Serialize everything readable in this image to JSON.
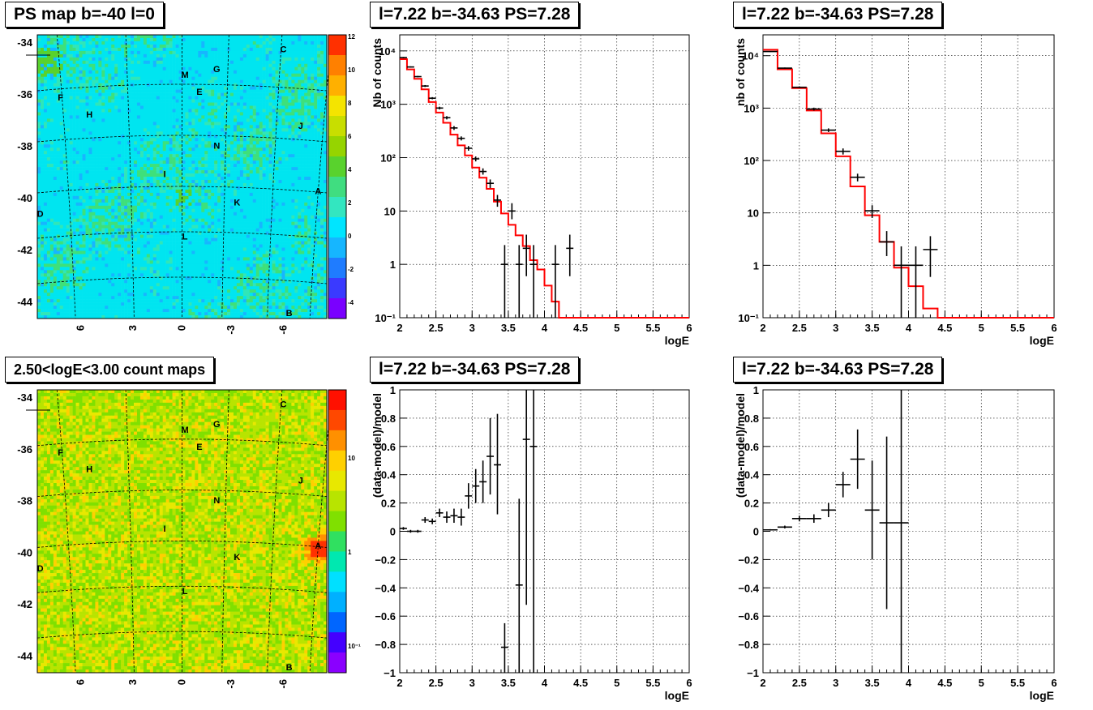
{
  "titles": {
    "map1": "PS map b=-40 l=0",
    "map2": "2.50<logE<3.00 count maps",
    "spec1": "l=7.22 b=-34.63 PS=7.28",
    "spec2": "l=7.22 b=-34.63 PS=7.28",
    "res1": "l=7.22 b=-34.63 PS=7.28",
    "res2": "l=7.22 b=-34.63 PS=7.28"
  },
  "maps": {
    "x_ticks": [
      "6",
      "3",
      "0",
      "-3",
      "-6"
    ],
    "y_ticks": [
      "-34",
      "-36",
      "-38",
      "-40",
      "-42",
      "-44"
    ],
    "markers": [
      "C",
      "M",
      "G",
      "F",
      "E",
      "H",
      "J",
      "N",
      "I",
      "A",
      "D",
      "K",
      "L",
      "B"
    ],
    "ps_scale": [
      "12",
      "10",
      "8",
      "6",
      "4",
      "2",
      "0",
      "-2",
      "-4"
    ],
    "count_scale": [
      "10",
      "1",
      "10⁻¹"
    ]
  },
  "chart_data": [
    {
      "type": "line",
      "panel": "spec1",
      "title": "l=7.22 b=-34.63 PS=7.28",
      "xlabel": "logE",
      "ylabel": "Nb of counts",
      "ylog": true,
      "xlim": [
        2,
        6
      ],
      "ylim": [
        0.1,
        20000
      ],
      "x_ticks": [
        "2",
        "2.5",
        "3",
        "3.5",
        "4",
        "4.5",
        "5",
        "5.5",
        "6"
      ],
      "y_ticks": [
        "10⁻¹",
        "1",
        "10",
        "10²",
        "10³",
        "10⁴"
      ],
      "model_step": {
        "edges": [
          2.0,
          2.1,
          2.2,
          2.3,
          2.4,
          2.5,
          2.6,
          2.7,
          2.8,
          2.9,
          3.0,
          3.1,
          3.2,
          3.3,
          3.4,
          3.5,
          3.6,
          3.7,
          3.8,
          3.9,
          4.0,
          4.1,
          4.2,
          6.0
        ],
        "values": [
          7000,
          4500,
          3000,
          1900,
          1100,
          700,
          450,
          270,
          170,
          110,
          65,
          42,
          26,
          15,
          9,
          5.5,
          3.5,
          2.2,
          1.2,
          0.8,
          0.4,
          0.2,
          0.1
        ]
      },
      "data_points": [
        {
          "x": 2.05,
          "y": 7500,
          "ylo": 7300,
          "yhi": 7700
        },
        {
          "x": 2.15,
          "y": 5000,
          "ylo": 4860,
          "yhi": 5140
        },
        {
          "x": 2.25,
          "y": 3300,
          "ylo": 3200,
          "yhi": 3400
        },
        {
          "x": 2.35,
          "y": 2200,
          "ylo": 2110,
          "yhi": 2290
        },
        {
          "x": 2.45,
          "y": 1300,
          "ylo": 1240,
          "yhi": 1360
        },
        {
          "x": 2.55,
          "y": 850,
          "ylo": 800,
          "yhi": 900
        },
        {
          "x": 2.65,
          "y": 560,
          "ylo": 520,
          "yhi": 600
        },
        {
          "x": 2.75,
          "y": 360,
          "ylo": 330,
          "yhi": 390
        },
        {
          "x": 2.85,
          "y": 230,
          "ylo": 210,
          "yhi": 250
        },
        {
          "x": 2.95,
          "y": 150,
          "ylo": 135,
          "yhi": 165
        },
        {
          "x": 3.05,
          "y": 95,
          "ylo": 85,
          "yhi": 105
        },
        {
          "x": 3.15,
          "y": 55,
          "ylo": 48,
          "yhi": 63
        },
        {
          "x": 3.25,
          "y": 33,
          "ylo": 27,
          "yhi": 39
        },
        {
          "x": 3.35,
          "y": 16,
          "ylo": 12,
          "yhi": 20
        },
        {
          "x": 3.55,
          "y": 10,
          "ylo": 7,
          "yhi": 14
        },
        {
          "x": 3.45,
          "y": 1,
          "ylo": 0.1,
          "yhi": 2.3
        },
        {
          "x": 3.65,
          "y": 1,
          "ylo": 0.1,
          "yhi": 2.3
        },
        {
          "x": 3.75,
          "y": 2,
          "ylo": 0.6,
          "yhi": 3.6
        },
        {
          "x": 3.85,
          "y": 1,
          "ylo": 0.1,
          "yhi": 2.3
        },
        {
          "x": 4.15,
          "y": 1,
          "ylo": 0.1,
          "yhi": 2.3
        },
        {
          "x": 4.35,
          "y": 2,
          "ylo": 0.6,
          "yhi": 3.6
        }
      ]
    },
    {
      "type": "line",
      "panel": "spec2",
      "title": "l=7.22 b=-34.63 PS=7.28",
      "xlabel": "logE",
      "ylabel": "nb of counts",
      "ylog": true,
      "xlim": [
        2,
        6
      ],
      "ylim": [
        0.1,
        25000
      ],
      "x_ticks": [
        "2",
        "2.5",
        "3",
        "3.5",
        "4",
        "4.5",
        "5",
        "5.5",
        "6"
      ],
      "y_ticks": [
        "10⁻¹",
        "1",
        "10",
        "10²",
        "10³",
        "10⁴"
      ],
      "model_step": {
        "edges": [
          2.0,
          2.2,
          2.4,
          2.6,
          2.8,
          3.0,
          3.2,
          3.4,
          3.6,
          3.8,
          4.0,
          4.2,
          4.4,
          6.0
        ],
        "values": [
          13000,
          5500,
          2400,
          900,
          330,
          120,
          32,
          9,
          2.8,
          0.9,
          0.4,
          0.15,
          0.1
        ]
      },
      "data_points": [
        {
          "x": 2.1,
          "y": 12000,
          "ylo": 11800,
          "yhi": 12200
        },
        {
          "x": 2.3,
          "y": 5800,
          "ylo": 5650,
          "yhi": 5950
        },
        {
          "x": 2.5,
          "y": 2500,
          "ylo": 2400,
          "yhi": 2600
        },
        {
          "x": 2.7,
          "y": 960,
          "ylo": 900,
          "yhi": 1020
        },
        {
          "x": 2.9,
          "y": 380,
          "ylo": 350,
          "yhi": 410
        },
        {
          "x": 3.1,
          "y": 150,
          "ylo": 130,
          "yhi": 170
        },
        {
          "x": 3.3,
          "y": 48,
          "ylo": 40,
          "yhi": 56
        },
        {
          "x": 3.5,
          "y": 11,
          "ylo": 8,
          "yhi": 14
        },
        {
          "x": 3.7,
          "y": 2.8,
          "ylo": 1.5,
          "yhi": 4.5
        },
        {
          "x": 3.9,
          "y": 1,
          "ylo": 0.1,
          "yhi": 2.3
        },
        {
          "x": 4.1,
          "y": 1,
          "ylo": 0.1,
          "yhi": 2.3
        },
        {
          "x": 4.3,
          "y": 2,
          "ylo": 0.6,
          "yhi": 3.6
        }
      ]
    },
    {
      "type": "scatter",
      "panel": "res1",
      "title": "l=7.22 b=-34.63 PS=7.28",
      "xlabel": "logE",
      "ylabel": "(data-model)/model",
      "xlim": [
        2,
        6
      ],
      "ylim": [
        -1,
        1
      ],
      "x_ticks": [
        "2",
        "2.5",
        "3",
        "3.5",
        "4",
        "4.5",
        "5",
        "5.5",
        "6"
      ],
      "y_ticks": [
        "−1",
        "−0.8",
        "−0.6",
        "−0.4",
        "−0.2",
        "0",
        "0.2",
        "0.4",
        "0.6",
        "0.8",
        "1"
      ],
      "data_points": [
        {
          "x": 2.05,
          "y": 0.02,
          "ylo": 0.01,
          "yhi": 0.03
        },
        {
          "x": 2.15,
          "y": 0.0,
          "ylo": -0.01,
          "yhi": 0.01
        },
        {
          "x": 2.25,
          "y": 0.0,
          "ylo": -0.01,
          "yhi": 0.01
        },
        {
          "x": 2.35,
          "y": 0.08,
          "ylo": 0.06,
          "yhi": 0.1
        },
        {
          "x": 2.45,
          "y": 0.07,
          "ylo": 0.05,
          "yhi": 0.09
        },
        {
          "x": 2.55,
          "y": 0.13,
          "ylo": 0.1,
          "yhi": 0.16
        },
        {
          "x": 2.65,
          "y": 0.1,
          "ylo": 0.06,
          "yhi": 0.14
        },
        {
          "x": 2.75,
          "y": 0.11,
          "ylo": 0.06,
          "yhi": 0.16
        },
        {
          "x": 2.85,
          "y": 0.1,
          "ylo": 0.04,
          "yhi": 0.16
        },
        {
          "x": 2.95,
          "y": 0.25,
          "ylo": 0.16,
          "yhi": 0.34
        },
        {
          "x": 3.05,
          "y": 0.32,
          "ylo": 0.2,
          "yhi": 0.44
        },
        {
          "x": 3.15,
          "y": 0.35,
          "ylo": 0.2,
          "yhi": 0.5
        },
        {
          "x": 3.25,
          "y": 0.53,
          "ylo": 0.26,
          "yhi": 0.8
        },
        {
          "x": 3.35,
          "y": 0.47,
          "ylo": 0.12,
          "yhi": 0.83
        },
        {
          "x": 3.45,
          "y": -0.82,
          "ylo": -1.0,
          "yhi": -0.65
        },
        {
          "x": 3.65,
          "y": -0.38,
          "ylo": -1.0,
          "yhi": 0.23
        },
        {
          "x": 3.75,
          "y": 0.65,
          "ylo": -0.52,
          "yhi": 1.0
        },
        {
          "x": 3.85,
          "y": 0.6,
          "ylo": -1.0,
          "yhi": 1.0
        }
      ]
    },
    {
      "type": "scatter",
      "panel": "res2",
      "title": "l=7.22 b=-34.63 PS=7.28",
      "xlabel": "logE",
      "ylabel": "(data-model)/model",
      "xlim": [
        2,
        6
      ],
      "ylim": [
        -1,
        1
      ],
      "x_ticks": [
        "2",
        "2.5",
        "3",
        "3.5",
        "4",
        "4.5",
        "5",
        "5.5",
        "6"
      ],
      "y_ticks": [
        "−1",
        "−0.8",
        "−0.6",
        "−0.4",
        "−0.2",
        "0",
        "0.2",
        "0.4",
        "0.6",
        "0.8",
        "1"
      ],
      "data_points": [
        {
          "x": 2.1,
          "y": 0.01,
          "ylo": 0.005,
          "yhi": 0.015
        },
        {
          "x": 2.3,
          "y": 0.03,
          "ylo": 0.02,
          "yhi": 0.04
        },
        {
          "x": 2.5,
          "y": 0.09,
          "ylo": 0.07,
          "yhi": 0.11
        },
        {
          "x": 2.7,
          "y": 0.09,
          "ylo": 0.06,
          "yhi": 0.12
        },
        {
          "x": 2.9,
          "y": 0.15,
          "ylo": 0.1,
          "yhi": 0.2
        },
        {
          "x": 3.1,
          "y": 0.33,
          "ylo": 0.24,
          "yhi": 0.42
        },
        {
          "x": 3.3,
          "y": 0.51,
          "ylo": 0.3,
          "yhi": 0.72
        },
        {
          "x": 3.5,
          "y": 0.15,
          "ylo": -0.2,
          "yhi": 0.5
        },
        {
          "x": 3.7,
          "y": 0.06,
          "ylo": -0.55,
          "yhi": 0.67
        },
        {
          "x": 3.9,
          "y": 0.06,
          "ylo": -1.0,
          "yhi": 1.0
        }
      ]
    }
  ]
}
